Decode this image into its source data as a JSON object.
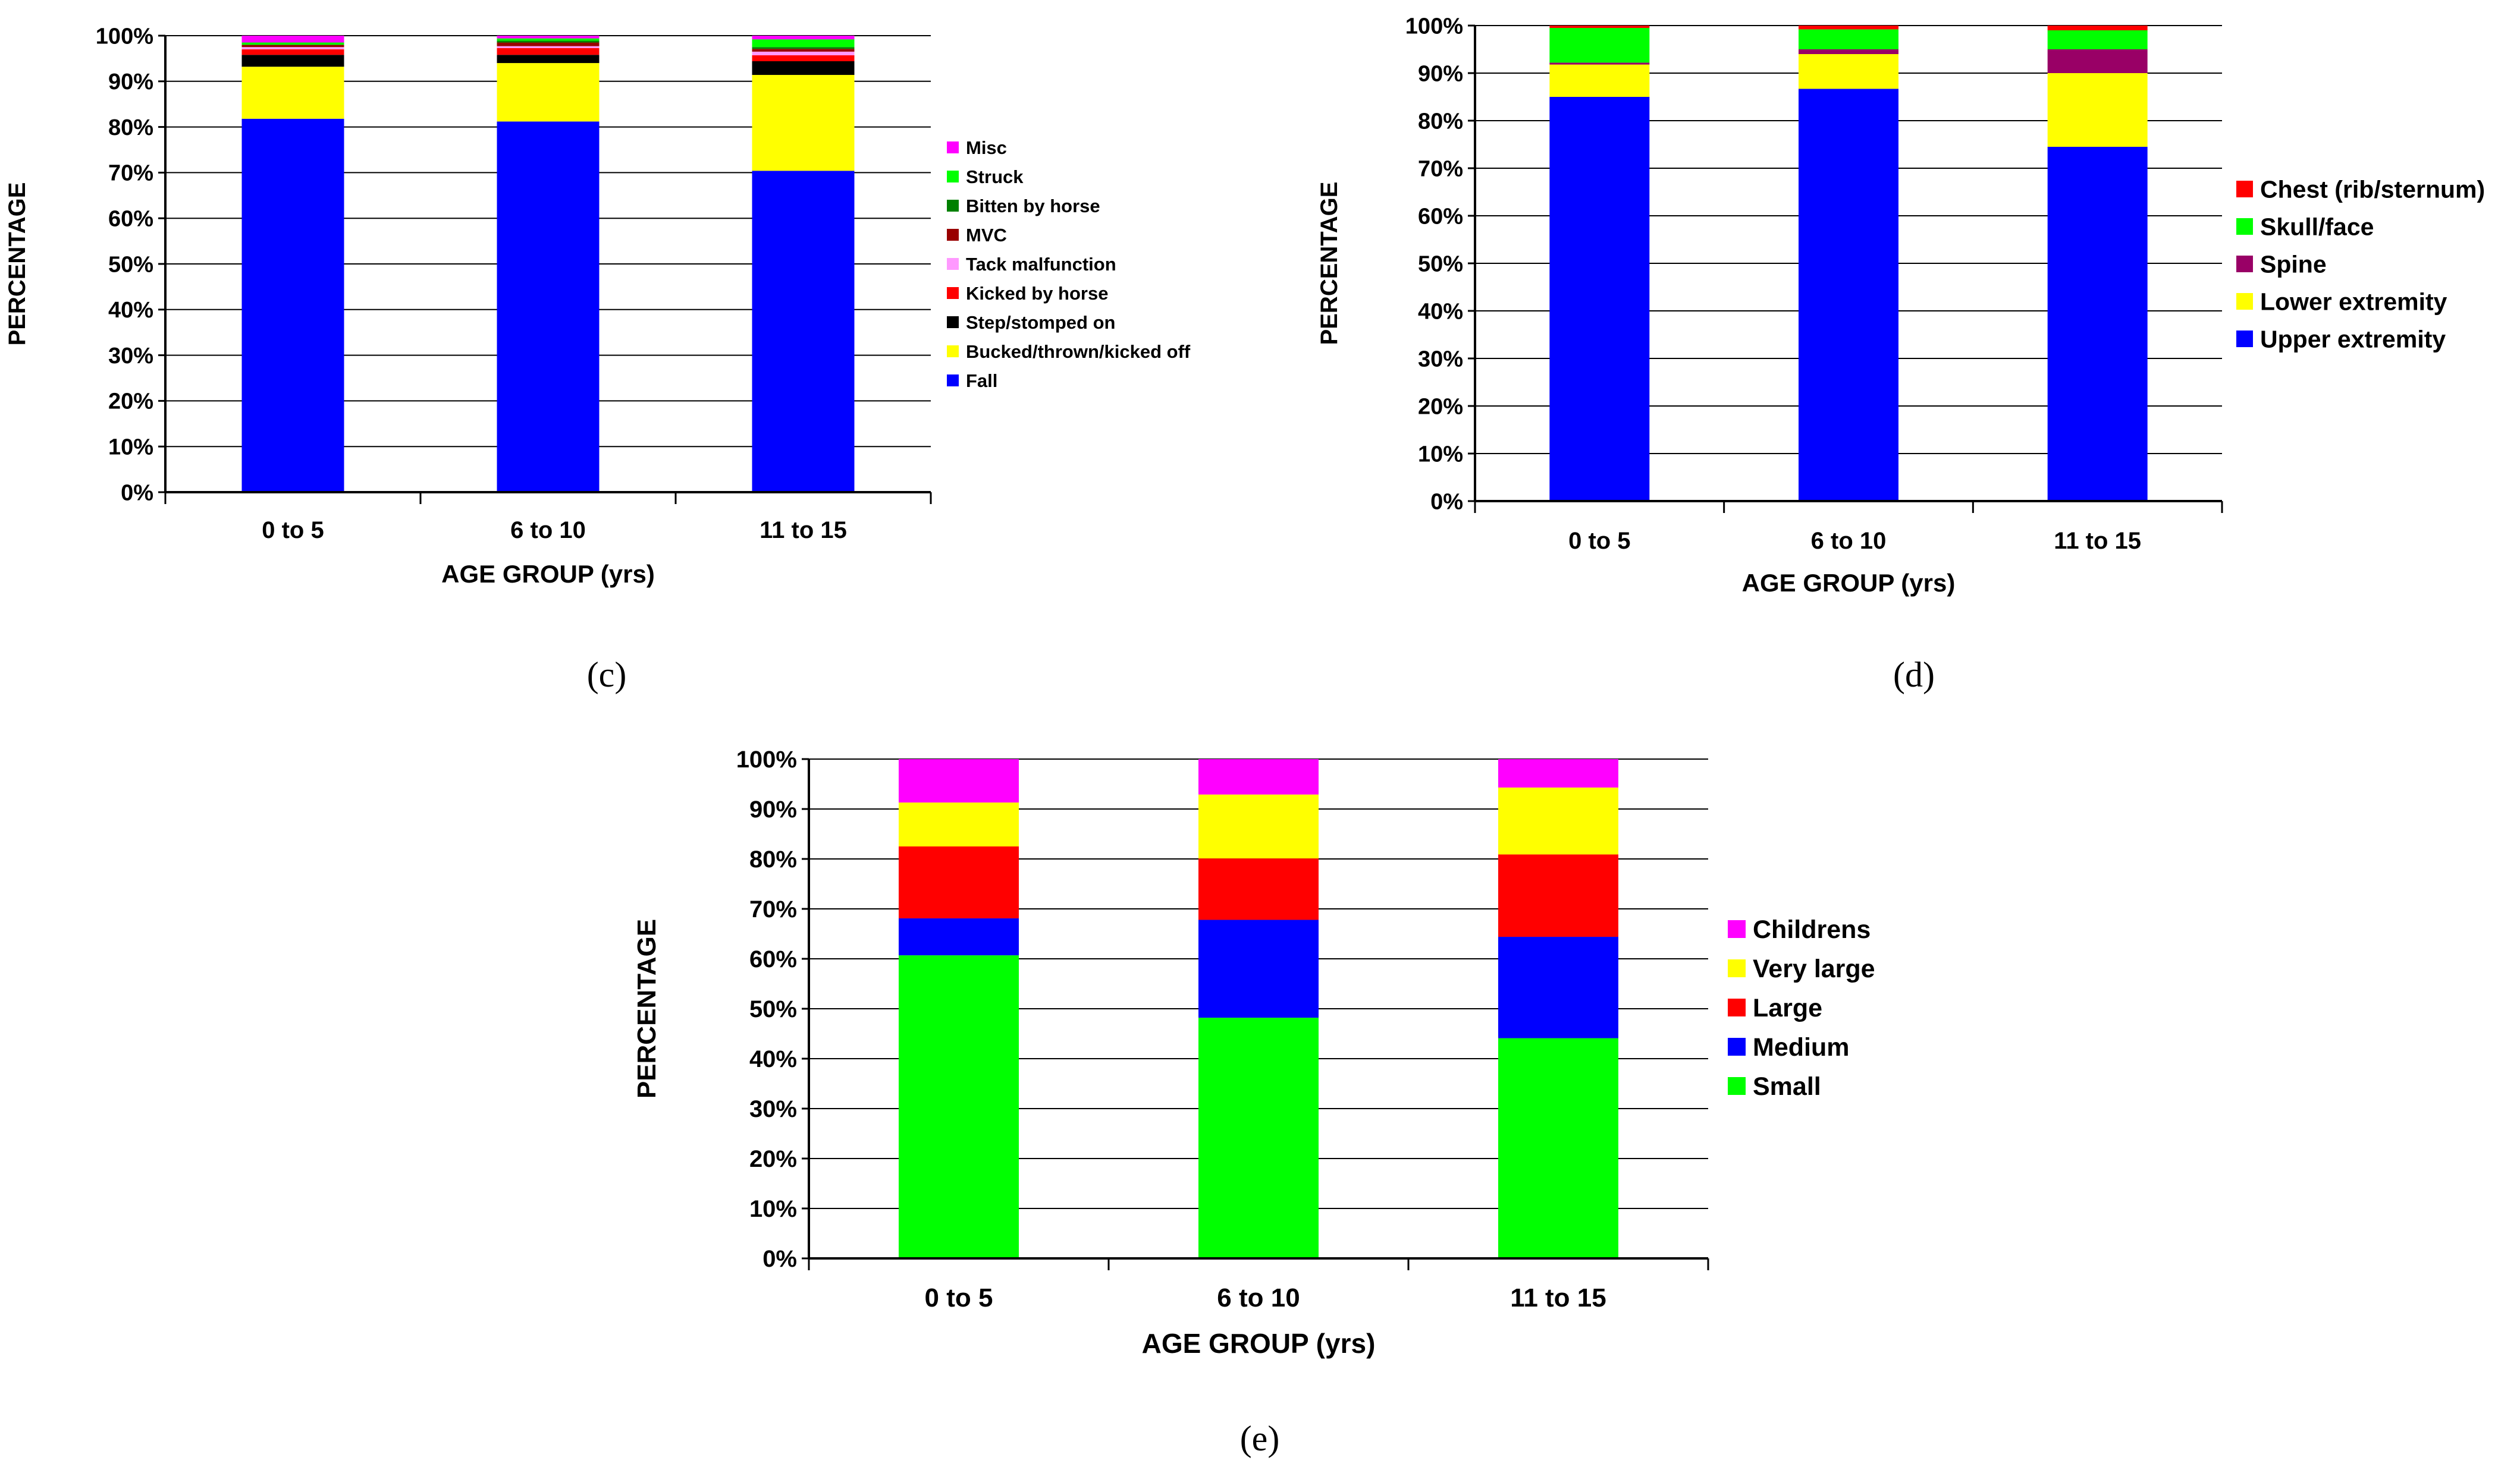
{
  "chart_data": [
    {
      "panel_label": "(c)",
      "type": "bar",
      "stacked": true,
      "categories": [
        "0 to 5",
        "6 to 10",
        "11 to 15"
      ],
      "xlabel": "AGE GROUP (yrs)",
      "ylabel": "PERCENTAGE",
      "ylim": [
        0,
        100
      ],
      "yticks": [
        "0%",
        "10%",
        "20%",
        "30%",
        "40%",
        "50%",
        "60%",
        "70%",
        "80%",
        "90%",
        "100%"
      ],
      "grid": true,
      "legend_position": "right",
      "series": [
        {
          "name": "Fall",
          "color": "#0000FF",
          "values": [
            81.8,
            81.2,
            70.4
          ]
        },
        {
          "name": "Bucked/thrown/kicked off",
          "color": "#FFFF00",
          "values": [
            11.4,
            12.8,
            21.0
          ]
        },
        {
          "name": "Step/stomped on",
          "color": "#000000",
          "values": [
            2.6,
            1.8,
            3.0
          ]
        },
        {
          "name": "Kicked by horse",
          "color": "#FF0000",
          "values": [
            1.2,
            1.5,
            1.3
          ]
        },
        {
          "name": "Tack malfunction",
          "color": "#FF99FF",
          "values": [
            0.5,
            0.4,
            0.8
          ]
        },
        {
          "name": "MVC",
          "color": "#990000",
          "values": [
            0.5,
            0.8,
            0.6
          ]
        },
        {
          "name": "Bitten by horse",
          "color": "#008000",
          "values": [
            0.0,
            0.4,
            0.4
          ]
        },
        {
          "name": "Struck",
          "color": "#00FF00",
          "values": [
            0.5,
            0.5,
            1.7
          ]
        },
        {
          "name": "Misc",
          "color": "#FF00FF",
          "values": [
            1.5,
            0.6,
            0.8
          ]
        }
      ]
    },
    {
      "panel_label": "(d)",
      "type": "bar",
      "stacked": true,
      "categories": [
        "0 to 5",
        "6 to 10",
        "11 to 15"
      ],
      "xlabel": "AGE GROUP (yrs)",
      "ylabel": "PERCENTAGE",
      "ylim": [
        0,
        100
      ],
      "yticks": [
        "0%",
        "10%",
        "20%",
        "30%",
        "40%",
        "50%",
        "60%",
        "70%",
        "80%",
        "90%",
        "100%"
      ],
      "grid": true,
      "legend_position": "right",
      "series": [
        {
          "name": "Upper extremity",
          "color": "#0000FF",
          "values": [
            85.0,
            86.7,
            74.5
          ]
        },
        {
          "name": "Lower extremity",
          "color": "#FFFF00",
          "values": [
            6.8,
            7.3,
            15.5
          ]
        },
        {
          "name": "Spine",
          "color": "#990066",
          "values": [
            0.4,
            1.0,
            5.0
          ]
        },
        {
          "name": "Skull/face",
          "color": "#00FF00",
          "values": [
            7.3,
            4.2,
            4.0
          ]
        },
        {
          "name": "Chest (rib/sternum)",
          "color": "#FF0000",
          "values": [
            0.5,
            0.8,
            1.0
          ]
        }
      ]
    },
    {
      "panel_label": "(e)",
      "type": "bar",
      "stacked": true,
      "categories": [
        "0 to 5",
        "6 to 10",
        "11 to 15"
      ],
      "xlabel": "AGE GROUP (yrs)",
      "ylabel": "PERCENTAGE",
      "ylim": [
        0,
        100
      ],
      "yticks": [
        "0%",
        "10%",
        "20%",
        "30%",
        "40%",
        "50%",
        "60%",
        "70%",
        "80%",
        "90%",
        "100%"
      ],
      "grid": true,
      "legend_position": "right",
      "series": [
        {
          "name": "Small",
          "color": "#00FF00",
          "values": [
            60.7,
            48.2,
            44.1
          ]
        },
        {
          "name": "Medium",
          "color": "#0000FF",
          "values": [
            7.4,
            19.6,
            20.3
          ]
        },
        {
          "name": "Large",
          "color": "#FF0000",
          "values": [
            14.4,
            12.3,
            16.5
          ]
        },
        {
          "name": "Very large",
          "color": "#FFFF00",
          "values": [
            8.8,
            12.8,
            13.4
          ]
        },
        {
          "name": "Childrens",
          "color": "#FF00FF",
          "values": [
            8.7,
            7.1,
            5.7
          ]
        }
      ]
    }
  ]
}
